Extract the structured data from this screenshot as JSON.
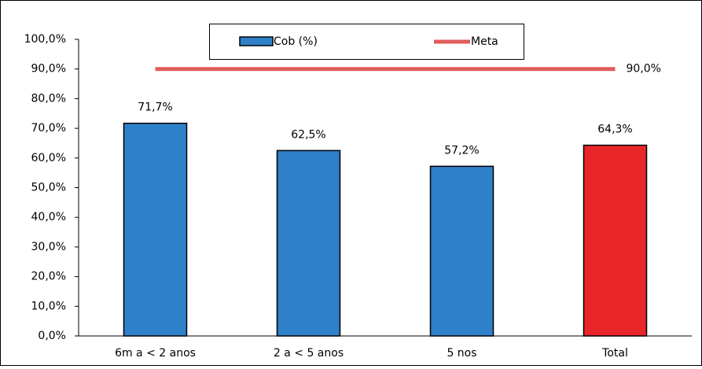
{
  "chart_data": {
    "type": "bar",
    "categories": [
      "6m a < 2 anos",
      "2 a < 5 anos",
      "5 nos",
      "Total"
    ],
    "series": [
      {
        "name": "Cob (%)",
        "type": "bar",
        "color": "#2e80c8",
        "colors": [
          "#2e80c8",
          "#2e80c8",
          "#2e80c8",
          "#e8262a"
        ],
        "values": [
          71.7,
          62.5,
          57.2,
          64.3
        ],
        "value_labels": [
          "71,7%",
          "62,5%",
          "57,2%",
          "64,3%"
        ]
      },
      {
        "name": "Meta",
        "type": "line",
        "color": "#e05c5c",
        "values": [
          90,
          90,
          90,
          90
        ],
        "value_labels": [
          null,
          null,
          null,
          "90,0%"
        ]
      }
    ],
    "ylim": [
      0,
      100
    ],
    "yticks": [
      {
        "value": 0,
        "label": "0,0%"
      },
      {
        "value": 10,
        "label": "10,0%"
      },
      {
        "value": 20,
        "label": "20,0%"
      },
      {
        "value": 30,
        "label": "30,0%"
      },
      {
        "value": 40,
        "label": "40,0%"
      },
      {
        "value": 50,
        "label": "50,0%"
      },
      {
        "value": 60,
        "label": "60,0%"
      },
      {
        "value": 70,
        "label": "70,0%"
      },
      {
        "value": 80,
        "label": "80,0%"
      },
      {
        "value": 90,
        "label": "90,0%"
      },
      {
        "value": 100,
        "label": "100,0%"
      }
    ],
    "grid": false
  }
}
